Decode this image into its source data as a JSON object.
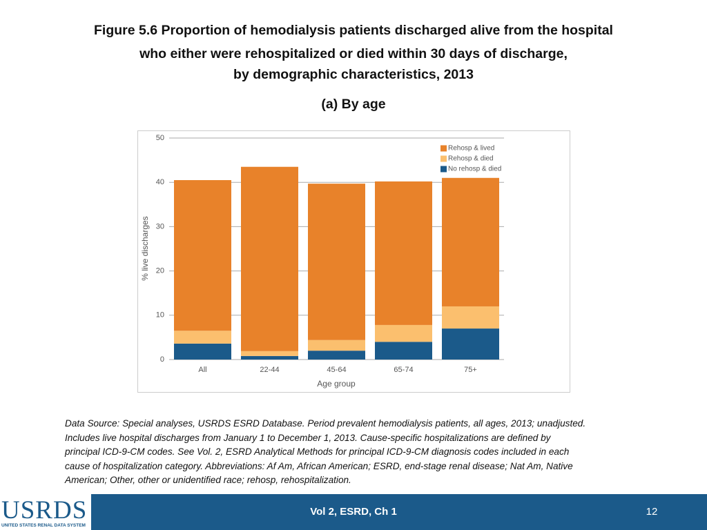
{
  "header": {
    "title_lines": [
      "Figure 5.6 Proportion of hemodialysis patients discharged alive from the hospital",
      "who either were rehospitalized or died within 30 days of discharge,",
      "by demographic characteristics, 2013"
    ],
    "subtitle": "(a) By age"
  },
  "chart_data": {
    "type": "stacked_bar",
    "y_label": "% live discharges",
    "x_label": "Age group",
    "categories": [
      "All",
      "22-44",
      "45-64",
      "65-74",
      "75+"
    ],
    "series": [
      {
        "name": "No rehosp & died",
        "color": "#1b5a8a",
        "values": [
          3.6,
          0.8,
          2.0,
          4.0,
          7.0
        ]
      },
      {
        "name": "Rehosp & died",
        "color": "#fbbf6e",
        "values": [
          2.9,
          1.1,
          2.4,
          3.8,
          5.0
        ]
      },
      {
        "name": "Rehosp & lived",
        "color": "#e8822a",
        "values": [
          34.0,
          41.6,
          35.3,
          32.4,
          29.0
        ]
      }
    ],
    "ylim": [
      0,
      50
    ],
    "yticks": [
      0,
      10,
      20,
      30,
      40,
      50
    ],
    "grid": true,
    "legend": "top-right"
  },
  "footnote": {
    "lines": [
      "Data Source: Special analyses, USRDS ESRD Database. Period prevalent hemodialysis patients, all ages, 2013; unadjusted.",
      "Includes live hospital discharges from January 1 to December 1, 2013. Cause-specific hospitalizations are defined by",
      "principal ICD-9-CM codes. See Vol. 2, ESRD Analytical Methods for principal ICD-9-CM diagnosis codes included in each",
      "cause of hospitalization category. Abbreviations: Af Am, African American; ESRD, end-stage renal disease; Nat Am, Native",
      "American; Other, other or unidentified race; rehosp, rehospitalization."
    ]
  },
  "footer": {
    "logo": "USRDS",
    "logo_subtitle": "UNITED STATES RENAL DATA SYSTEM",
    "section": "Vol 2, ESRD, Ch 1",
    "page": "12"
  }
}
